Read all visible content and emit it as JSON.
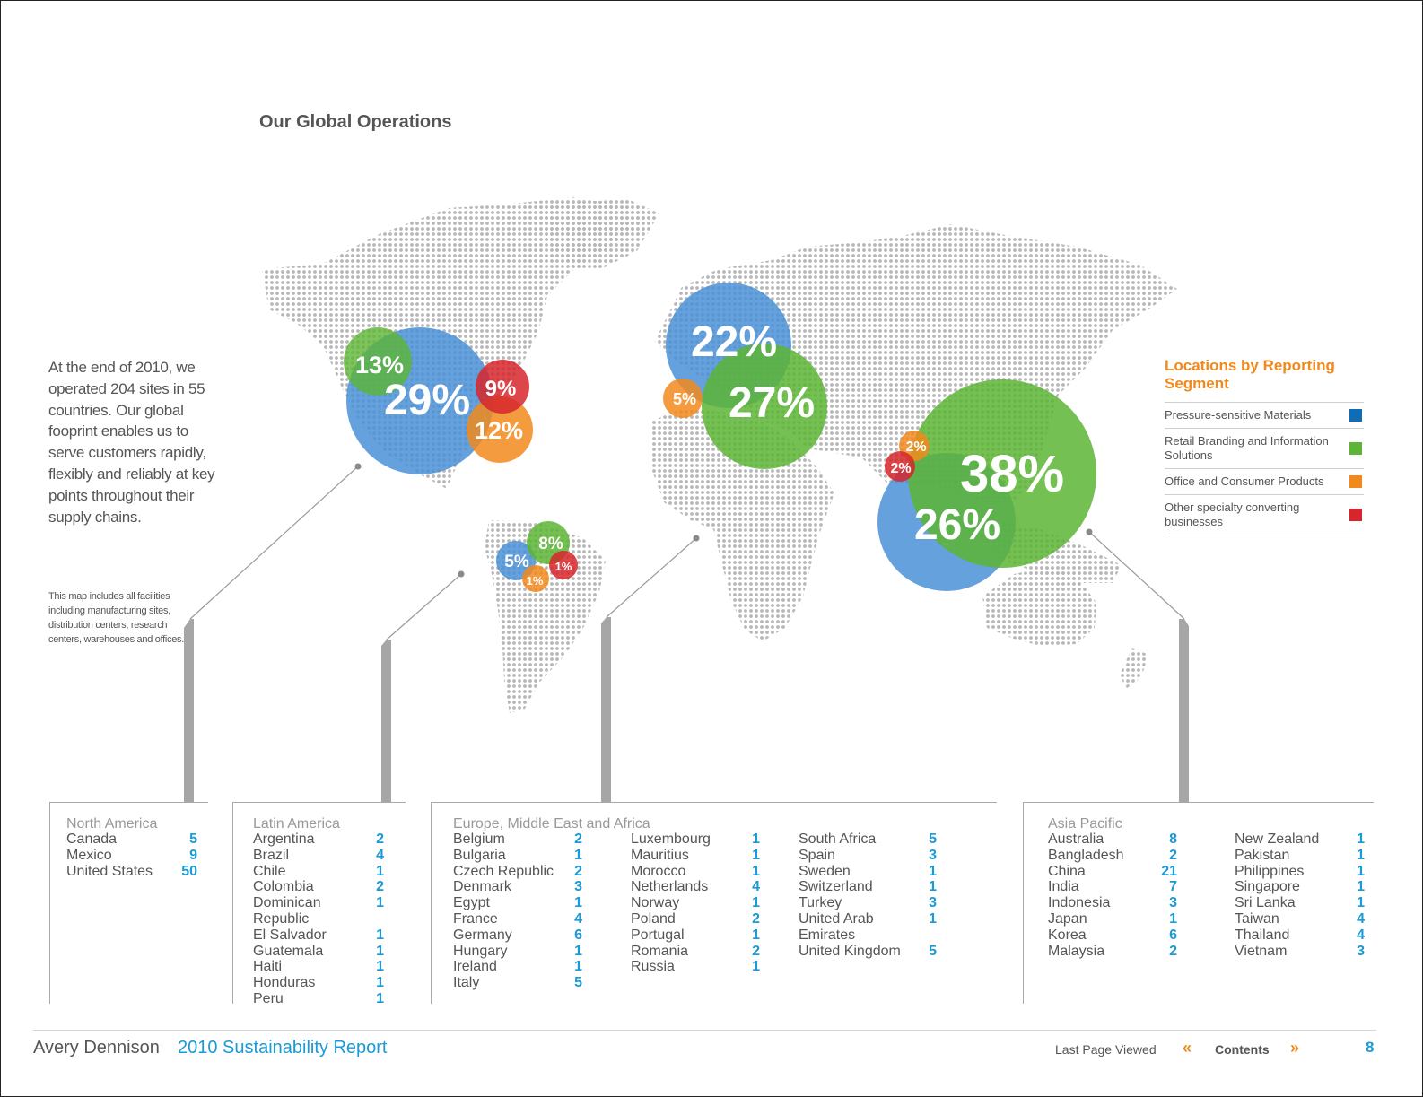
{
  "header": {
    "title": "Our Global Operations"
  },
  "intro": {
    "text": "At the end of 2010, we operated 204 sites in 55 countries. Our global fooprint enables us to serve customers rapidly, flexibly and reliably at key points throughout their supply chains."
  },
  "note": {
    "text": "This map includes all facilities including manufacturing sites, distribution centers, research centers, warehouses and offices."
  },
  "colors": {
    "blue": "#4a90d6",
    "green": "#5db535",
    "orange": "#f18a1c",
    "red": "#d7262b",
    "accent_blue": "#1a9ad6",
    "accent_orange": "#f08a1c"
  },
  "legend": {
    "title": "Locations by Reporting Segment",
    "items": [
      {
        "label": "Pressure-sensitive Materials",
        "color": "#0f6db5"
      },
      {
        "label": "Retail Branding and Information Solutions",
        "color": "#5db535"
      },
      {
        "label": "Office and Consumer Products",
        "color": "#f18a1c"
      },
      {
        "label": "Other specialty converting businesses",
        "color": "#d7262b"
      }
    ]
  },
  "bubbles": {
    "north_america": [
      "29%",
      "13%",
      "9%",
      "12%"
    ],
    "latin_america": [
      "5%",
      "8%",
      "1%",
      "1%"
    ],
    "emea": [
      "22%",
      "27%",
      "5%"
    ],
    "asia_pacific": [
      "38%",
      "26%",
      "2%",
      "2%"
    ]
  },
  "regions": {
    "north_america": {
      "title": "North America",
      "columns": [
        [
          {
            "country": "Canada",
            "count": "5"
          },
          {
            "country": "Mexico",
            "count": "9"
          },
          {
            "country": "United States",
            "count": "50"
          }
        ]
      ]
    },
    "latin_america": {
      "title": "Latin America",
      "columns": [
        [
          {
            "country": "Argentina",
            "count": "2"
          },
          {
            "country": "Brazil",
            "count": "4"
          },
          {
            "country": "Chile",
            "count": "1"
          },
          {
            "country": "Colombia",
            "count": "2"
          },
          {
            "country": "Dominican Republic",
            "count": "1"
          },
          {
            "country": "El Salvador",
            "count": "1"
          },
          {
            "country": "Guatemala",
            "count": "1"
          },
          {
            "country": "Haiti",
            "count": "1"
          },
          {
            "country": "Honduras",
            "count": "1"
          },
          {
            "country": "Peru",
            "count": "1"
          }
        ]
      ]
    },
    "emea": {
      "title": "Europe, Middle East and Africa",
      "columns": [
        [
          {
            "country": "Belgium",
            "count": "2"
          },
          {
            "country": "Bulgaria",
            "count": "1"
          },
          {
            "country": "Czech Republic",
            "count": "2"
          },
          {
            "country": "Denmark",
            "count": "3"
          },
          {
            "country": "Egypt",
            "count": "1"
          },
          {
            "country": "France",
            "count": "4"
          },
          {
            "country": "Germany",
            "count": "6"
          },
          {
            "country": "Hungary",
            "count": "1"
          },
          {
            "country": "Ireland",
            "count": "1"
          },
          {
            "country": "Italy",
            "count": "5"
          }
        ],
        [
          {
            "country": "Luxembourg",
            "count": "1"
          },
          {
            "country": "Mauritius",
            "count": "1"
          },
          {
            "country": "Morocco",
            "count": "1"
          },
          {
            "country": "Netherlands",
            "count": "4"
          },
          {
            "country": "Norway",
            "count": "1"
          },
          {
            "country": "Poland",
            "count": "2"
          },
          {
            "country": "Portugal",
            "count": "1"
          },
          {
            "country": "Romania",
            "count": "2"
          },
          {
            "country": "Russia",
            "count": "1"
          }
        ],
        [
          {
            "country": "South Africa",
            "count": "5"
          },
          {
            "country": "Spain",
            "count": "3"
          },
          {
            "country": "Sweden",
            "count": "1"
          },
          {
            "country": "Switzerland",
            "count": "1"
          },
          {
            "country": "Turkey",
            "count": "3"
          },
          {
            "country": "United Arab Emirates",
            "count": "1"
          },
          {
            "country": "United Kingdom",
            "count": "5"
          }
        ]
      ]
    },
    "asia_pacific": {
      "title": "Asia Pacific",
      "columns": [
        [
          {
            "country": "Australia",
            "count": "8"
          },
          {
            "country": "Bangladesh",
            "count": "2"
          },
          {
            "country": "China",
            "count": "21"
          },
          {
            "country": "India",
            "count": "7"
          },
          {
            "country": "Indonesia",
            "count": "3"
          },
          {
            "country": "Japan",
            "count": "1"
          },
          {
            "country": "Korea",
            "count": "6"
          },
          {
            "country": "Malaysia",
            "count": "2"
          }
        ],
        [
          {
            "country": "New Zealand",
            "count": "1"
          },
          {
            "country": "Pakistan",
            "count": "1"
          },
          {
            "country": "Philippines",
            "count": "1"
          },
          {
            "country": "Singapore",
            "count": "1"
          },
          {
            "country": "Sri Lanka",
            "count": "1"
          },
          {
            "country": "Taiwan",
            "count": "4"
          },
          {
            "country": "Thailand",
            "count": "4"
          },
          {
            "country": "Vietnam",
            "count": "3"
          }
        ]
      ]
    }
  },
  "footer": {
    "brand": "Avery Dennison",
    "report": "2010 Sustainability Report",
    "last_page": "Last Page Viewed",
    "prev_glyph": "«",
    "contents": "Contents",
    "next_glyph": "»",
    "page_number": "8"
  }
}
